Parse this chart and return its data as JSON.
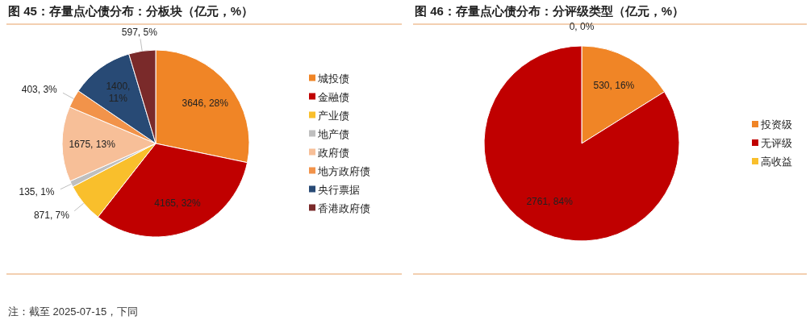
{
  "chart_data": [
    {
      "type": "pie",
      "title": "图 45：存量点心债分布：分板块（亿元，%）",
      "legend": "right",
      "categories": [
        "城投债",
        "金融债",
        "产业债",
        "地产债",
        "政府债",
        "地方政府债",
        "央行票据",
        "香港政府债"
      ],
      "values": [
        3646,
        4165,
        871,
        135,
        1675,
        403,
        1400,
        597
      ],
      "value_labels": [
        "3646, 28%",
        "4165, 32%",
        "871, 7%",
        "135, 1%",
        "1675, 13%",
        "403, 3%",
        "1400, 11%",
        "597, 5%"
      ],
      "colors": [
        "#f08526",
        "#c00000",
        "#f9bf2c",
        "#bfbfbf",
        "#f7bf98",
        "#f2934a",
        "#284a75",
        "#7a2a2a"
      ],
      "annotations": [
        "注：截至 2025-07-15，下同"
      ]
    },
    {
      "type": "pie",
      "title": "图 46：存量点心债分布：分评级类型（亿元，%）",
      "legend": "right",
      "categories": [
        "投资级",
        "无评级",
        "高收益"
      ],
      "values": [
        530,
        2761,
        0
      ],
      "value_labels": [
        "530, 16%",
        "2761, 84%",
        "0, 0%"
      ],
      "colors": [
        "#f08526",
        "#c00000",
        "#f9bf2c"
      ]
    }
  ]
}
